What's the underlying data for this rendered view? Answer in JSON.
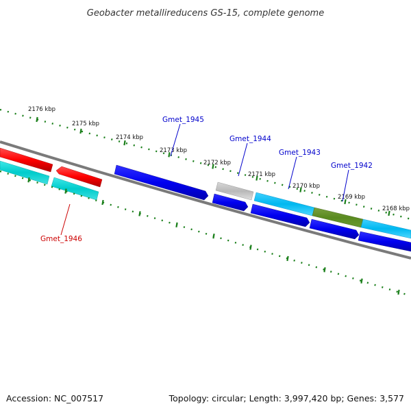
{
  "title": "Geobacter metallireducens GS-15, complete genome",
  "footer": {
    "accession": "Accession: NC_007517",
    "summary": "Topology: circular; Length: 3,997,420 bp; Genes: 3,577"
  },
  "colors": {
    "tick": "#1a7f1a",
    "backbone": "#808080",
    "forward_gene_label": "#0000cc",
    "reverse_gene_label": "#cc0000"
  },
  "ticks": [
    {
      "kbp": 2176,
      "label": "2176 kbp"
    },
    {
      "kbp": 2175,
      "label": "2175 kbp"
    },
    {
      "kbp": 2174,
      "label": "2174 kbp"
    },
    {
      "kbp": 2173,
      "label": "2173 kbp"
    },
    {
      "kbp": 2172,
      "label": "2172 kbp"
    },
    {
      "kbp": 2171,
      "label": "2171 kbp"
    },
    {
      "kbp": 2170,
      "label": "2170 kbp"
    },
    {
      "kbp": 2169,
      "label": "2169 kbp"
    },
    {
      "kbp": 2168,
      "label": "2168 kbp"
    }
  ],
  "gene_labels": [
    {
      "name": "Gmet_1945",
      "strand": "forward"
    },
    {
      "name": "Gmet_1944",
      "strand": "forward"
    },
    {
      "name": "Gmet_1943",
      "strand": "forward"
    },
    {
      "name": "Gmet_1942",
      "strand": "forward"
    },
    {
      "name": "Gmet_1946",
      "strand": "reverse"
    }
  ]
}
